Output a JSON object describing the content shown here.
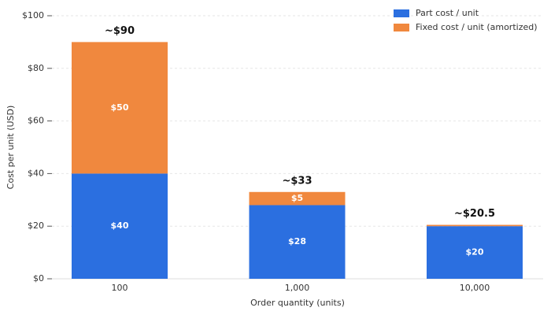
{
  "chart_data": {
    "type": "stacked_bar",
    "xlabel": "Order quantity (units)",
    "ylabel": "Cost per unit (USD)",
    "categories": [
      "100",
      "1,000",
      "10,000"
    ],
    "series": [
      {
        "name": "Part cost / unit",
        "color": "#2b6fe0",
        "values": [
          40,
          28,
          20
        ],
        "value_labels": [
          "$40",
          "$28",
          "$20"
        ]
      },
      {
        "name": "Fixed cost / unit (amortized)",
        "color": "#f0883e",
        "values": [
          50,
          5,
          0.5
        ],
        "value_labels": [
          "$50",
          "$5",
          null
        ]
      }
    ],
    "annotations": [
      "~$90",
      "~$33",
      "~$20.5"
    ],
    "ylim": [
      0,
      100
    ],
    "yticks": [
      {
        "value": 0,
        "label": "$0"
      },
      {
        "value": 20,
        "label": "$20"
      },
      {
        "value": 40,
        "label": "$40"
      },
      {
        "value": 60,
        "label": "$60"
      },
      {
        "value": 80,
        "label": "$80"
      },
      {
        "value": 100,
        "label": "$100"
      }
    ],
    "grid": true,
    "legend": "upper right"
  }
}
